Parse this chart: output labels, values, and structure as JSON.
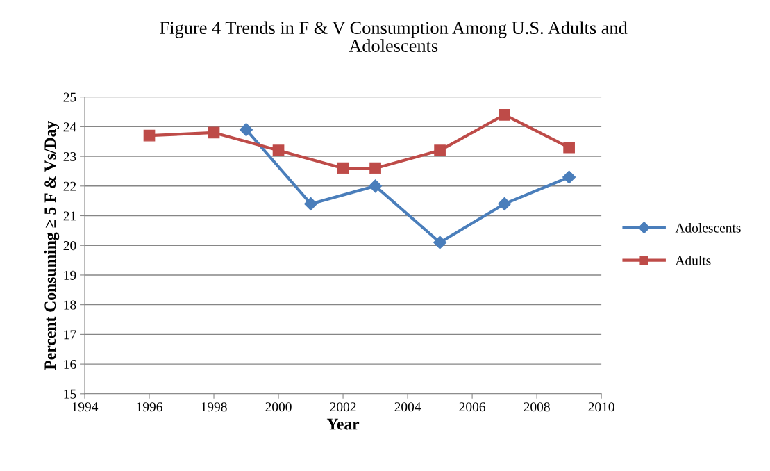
{
  "chart_data": {
    "type": "line",
    "title": "Figure 4 Trends in F & V Consumption Among U.S. Adults and Adolescents",
    "xlabel": "Year",
    "ylabel": "Percent Consuming ≥ 5 F & Vs/Day",
    "xlim": [
      1994,
      2010
    ],
    "xticks": [
      1994,
      1996,
      1998,
      2000,
      2002,
      2004,
      2006,
      2008,
      2010
    ],
    "ylim": [
      15,
      25
    ],
    "yticks": [
      15,
      16,
      17,
      18,
      19,
      20,
      21,
      22,
      23,
      24,
      25
    ],
    "grid": "y",
    "legend": "right",
    "line_style": "solid",
    "series": [
      {
        "name": "Adolescents",
        "color": "#4a7ebb",
        "marker": "diamond",
        "x": [
          1999,
          2001,
          2003,
          2005,
          2007,
          2009
        ],
        "values": [
          23.9,
          21.4,
          22.0,
          20.1,
          21.4,
          22.3
        ]
      },
      {
        "name": "Adults",
        "color": "#be4b48",
        "marker": "square",
        "x": [
          1996,
          1998,
          2000,
          2002,
          2003,
          2005,
          2007,
          2009
        ],
        "values": [
          23.7,
          23.8,
          23.2,
          22.6,
          22.6,
          23.2,
          24.4,
          23.3
        ]
      }
    ]
  }
}
